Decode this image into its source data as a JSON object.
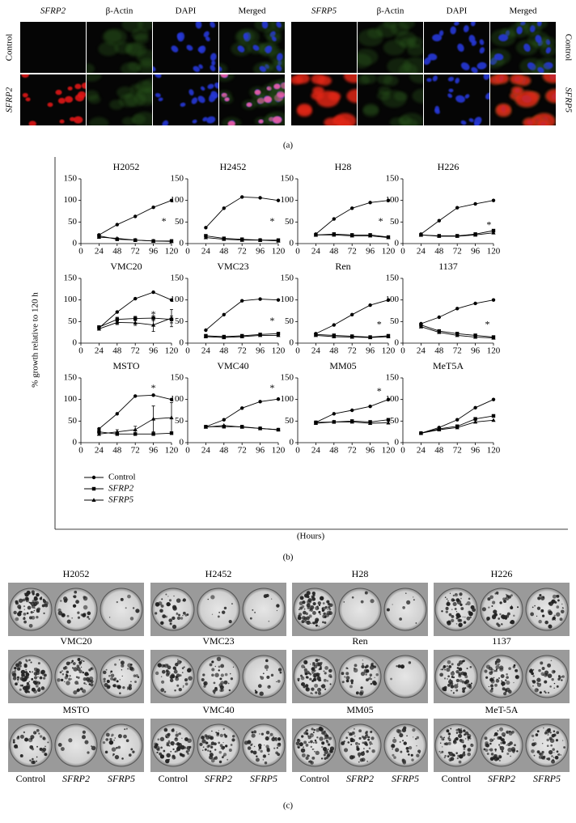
{
  "panel_a": {
    "left_columns": [
      "SFRP2",
      "β-Actin",
      "DAPI",
      "Merged"
    ],
    "right_columns": [
      "SFRP5",
      "β-Actin",
      "DAPI",
      "Merged"
    ],
    "left_rows": [
      "Control",
      "SFRP2"
    ],
    "right_rows": [
      "Control",
      "SFRP5"
    ],
    "label": "(a)"
  },
  "panel_b": {
    "ylabel": "% growth relative to 120 h",
    "xlabel": "(Hours)",
    "label": "(b)"
  },
  "chart_data": [
    {
      "type": "line",
      "title": "H2052",
      "x": [
        24,
        48,
        72,
        96,
        120
      ],
      "xlim": [
        0,
        120
      ],
      "xticks": [
        0,
        24,
        48,
        72,
        96,
        120
      ],
      "ylim": [
        0,
        150
      ],
      "yticks": [
        0,
        50,
        100,
        150
      ],
      "series": [
        {
          "name": "Control",
          "color": "#000",
          "marker": "circle",
          "values": [
            20,
            44,
            63,
            84,
            100
          ]
        },
        {
          "name": "SFRP2",
          "color": "#000",
          "marker": "square",
          "values": [
            18,
            10,
            8,
            6,
            6
          ]
        },
        {
          "name": "SFRP5",
          "color": "#000",
          "marker": "triangle",
          "values": [
            15,
            12,
            8,
            6,
            5
          ]
        }
      ],
      "annotations": [
        {
          "text": "*",
          "x": 110,
          "y": 50
        }
      ]
    },
    {
      "type": "line",
      "title": "H2452",
      "x": [
        24,
        48,
        72,
        96,
        120
      ],
      "xlim": [
        0,
        120
      ],
      "xticks": [
        0,
        24,
        48,
        72,
        96,
        120
      ],
      "ylim": [
        0,
        150
      ],
      "yticks": [
        0,
        50,
        100,
        150
      ],
      "series": [
        {
          "name": "Control",
          "color": "#000",
          "marker": "circle",
          "values": [
            37,
            82,
            108,
            106,
            100
          ]
        },
        {
          "name": "SFRP2",
          "color": "#000",
          "marker": "square",
          "values": [
            18,
            12,
            10,
            8,
            8
          ]
        },
        {
          "name": "SFRP5",
          "color": "#000",
          "marker": "triangle",
          "values": [
            14,
            10,
            8,
            8,
            6
          ]
        }
      ],
      "annotations": [
        {
          "text": "*",
          "x": 112,
          "y": 50
        }
      ]
    },
    {
      "type": "line",
      "title": "H28",
      "x": [
        24,
        48,
        72,
        96,
        120
      ],
      "xlim": [
        0,
        120
      ],
      "xticks": [
        0,
        24,
        48,
        72,
        96,
        120
      ],
      "ylim": [
        0,
        150
      ],
      "yticks": [
        0,
        50,
        100,
        150
      ],
      "series": [
        {
          "name": "Control",
          "color": "#000",
          "marker": "circle",
          "values": [
            22,
            57,
            82,
            95,
            100
          ]
        },
        {
          "name": "SFRP2",
          "color": "#000",
          "marker": "square",
          "values": [
            20,
            22,
            20,
            20,
            15
          ]
        },
        {
          "name": "SFRP5",
          "color": "#000",
          "marker": "triangle",
          "values": [
            20,
            20,
            18,
            18,
            14
          ]
        }
      ],
      "annotations": [
        {
          "text": "*",
          "x": 110,
          "y": 50
        }
      ]
    },
    {
      "type": "line",
      "title": "H226",
      "x": [
        24,
        48,
        72,
        96,
        120
      ],
      "xlim": [
        0,
        120
      ],
      "xticks": [
        0,
        24,
        48,
        72,
        96,
        120
      ],
      "ylim": [
        0,
        150
      ],
      "yticks": [
        0,
        50,
        100,
        150
      ],
      "series": [
        {
          "name": "Control",
          "color": "#000",
          "marker": "circle",
          "values": [
            22,
            53,
            83,
            92,
            100
          ]
        },
        {
          "name": "SFRP2",
          "color": "#000",
          "marker": "square",
          "values": [
            20,
            18,
            18,
            22,
            30
          ]
        },
        {
          "name": "SFRP5",
          "color": "#000",
          "marker": "triangle",
          "values": [
            20,
            17,
            17,
            20,
            25
          ]
        }
      ],
      "annotations": [
        {
          "text": "*",
          "x": 114,
          "y": 42
        }
      ]
    },
    {
      "type": "line",
      "title": "VMC20",
      "x": [
        24,
        48,
        72,
        96,
        120
      ],
      "xlim": [
        0,
        120
      ],
      "xticks": [
        0,
        24,
        48,
        72,
        96,
        120
      ],
      "ylim": [
        0,
        150
      ],
      "yticks": [
        0,
        50,
        100,
        150
      ],
      "series": [
        {
          "name": "Control",
          "color": "#000",
          "marker": "circle",
          "values": [
            35,
            72,
            103,
            118,
            100
          ]
        },
        {
          "name": "SFRP2",
          "color": "#000",
          "marker": "square",
          "values": [
            37,
            55,
            57,
            58,
            55
          ],
          "errors": [
            3,
            5,
            5,
            6,
            8
          ]
        },
        {
          "name": "SFRP5",
          "color": "#000",
          "marker": "triangle",
          "values": [
            33,
            48,
            47,
            42,
            58
          ],
          "errors": [
            3,
            5,
            6,
            15,
            20
          ]
        }
      ],
      "annotations": [
        {
          "text": "*",
          "x": 96,
          "y": 65
        }
      ]
    },
    {
      "type": "line",
      "title": "VMC23",
      "x": [
        24,
        48,
        72,
        96,
        120
      ],
      "xlim": [
        0,
        120
      ],
      "xticks": [
        0,
        24,
        48,
        72,
        96,
        120
      ],
      "ylim": [
        0,
        150
      ],
      "yticks": [
        0,
        50,
        100,
        150
      ],
      "series": [
        {
          "name": "Control",
          "color": "#000",
          "marker": "circle",
          "values": [
            30,
            66,
            98,
            102,
            100
          ]
        },
        {
          "name": "SFRP2",
          "color": "#000",
          "marker": "square",
          "values": [
            17,
            15,
            17,
            20,
            22
          ]
        },
        {
          "name": "SFRP5",
          "color": "#000",
          "marker": "triangle",
          "values": [
            15,
            13,
            15,
            18,
            18
          ]
        }
      ],
      "annotations": [
        {
          "text": "*",
          "x": 112,
          "y": 50
        }
      ]
    },
    {
      "type": "line",
      "title": "Ren",
      "x": [
        24,
        48,
        72,
        96,
        120
      ],
      "xlim": [
        0,
        120
      ],
      "xticks": [
        0,
        24,
        48,
        72,
        96,
        120
      ],
      "ylim": [
        0,
        150
      ],
      "yticks": [
        0,
        50,
        100,
        150
      ],
      "series": [
        {
          "name": "Control",
          "color": "#000",
          "marker": "circle",
          "values": [
            22,
            42,
            66,
            88,
            100
          ]
        },
        {
          "name": "SFRP2",
          "color": "#000",
          "marker": "square",
          "values": [
            20,
            18,
            16,
            14,
            17
          ]
        },
        {
          "name": "SFRP5",
          "color": "#000",
          "marker": "triangle",
          "values": [
            18,
            15,
            14,
            13,
            15
          ]
        }
      ],
      "annotations": [
        {
          "text": "*",
          "x": 108,
          "y": 42
        }
      ]
    },
    {
      "type": "line",
      "title": "1137",
      "x": [
        24,
        48,
        72,
        96,
        120
      ],
      "xlim": [
        0,
        120
      ],
      "xticks": [
        0,
        24,
        48,
        72,
        96,
        120
      ],
      "ylim": [
        0,
        150
      ],
      "yticks": [
        0,
        50,
        100,
        150
      ],
      "series": [
        {
          "name": "Control",
          "color": "#000",
          "marker": "circle",
          "values": [
            45,
            60,
            80,
            92,
            100
          ]
        },
        {
          "name": "SFRP2",
          "color": "#000",
          "marker": "square",
          "values": [
            42,
            28,
            22,
            18,
            14
          ]
        },
        {
          "name": "SFRP5",
          "color": "#000",
          "marker": "triangle",
          "values": [
            38,
            25,
            18,
            14,
            12
          ]
        }
      ],
      "annotations": [
        {
          "text": "*",
          "x": 112,
          "y": 42
        }
      ]
    },
    {
      "type": "line",
      "title": "MSTO",
      "x": [
        24,
        48,
        72,
        96,
        120
      ],
      "xlim": [
        0,
        120
      ],
      "xticks": [
        0,
        24,
        48,
        72,
        96,
        120
      ],
      "ylim": [
        0,
        150
      ],
      "yticks": [
        0,
        50,
        100,
        150
      ],
      "series": [
        {
          "name": "Control",
          "color": "#000",
          "marker": "circle",
          "values": [
            32,
            67,
            108,
            110,
            100
          ]
        },
        {
          "name": "SFRP2",
          "color": "#000",
          "marker": "square",
          "values": [
            25,
            20,
            20,
            20,
            22
          ]
        },
        {
          "name": "SFRP5",
          "color": "#000",
          "marker": "triangle",
          "values": [
            20,
            25,
            30,
            55,
            58
          ],
          "errors": [
            3,
            5,
            8,
            30,
            35
          ]
        }
      ],
      "annotations": [
        {
          "text": "*",
          "x": 96,
          "y": 125
        }
      ]
    },
    {
      "type": "line",
      "title": "VMC40",
      "x": [
        24,
        48,
        72,
        96,
        120
      ],
      "xlim": [
        0,
        120
      ],
      "xticks": [
        0,
        24,
        48,
        72,
        96,
        120
      ],
      "ylim": [
        0,
        150
      ],
      "yticks": [
        0,
        50,
        100,
        150
      ],
      "series": [
        {
          "name": "Control",
          "color": "#000",
          "marker": "circle",
          "values": [
            37,
            53,
            80,
            95,
            101
          ]
        },
        {
          "name": "SFRP2",
          "color": "#000",
          "marker": "square",
          "values": [
            37,
            37,
            37,
            33,
            30
          ]
        },
        {
          "name": "SFRP5",
          "color": "#000",
          "marker": "triangle",
          "values": [
            36,
            40,
            36,
            33,
            30
          ]
        }
      ],
      "annotations": [
        {
          "text": "*",
          "x": 112,
          "y": 125
        }
      ]
    },
    {
      "type": "line",
      "title": "MM05",
      "x": [
        24,
        48,
        72,
        96,
        120
      ],
      "xlim": [
        0,
        120
      ],
      "xticks": [
        0,
        24,
        48,
        72,
        96,
        120
      ],
      "ylim": [
        0,
        150
      ],
      "yticks": [
        0,
        50,
        100,
        150
      ],
      "series": [
        {
          "name": "Control",
          "color": "#000",
          "marker": "circle",
          "values": [
            47,
            67,
            75,
            84,
            100
          ]
        },
        {
          "name": "SFRP2",
          "color": "#000",
          "marker": "square",
          "values": [
            47,
            48,
            50,
            48,
            53
          ]
        },
        {
          "name": "SFRP5",
          "color": "#000",
          "marker": "triangle",
          "values": [
            45,
            48,
            48,
            45,
            46
          ]
        }
      ],
      "annotations": [
        {
          "text": "*",
          "x": 108,
          "y": 118
        }
      ]
    },
    {
      "type": "line",
      "title": "MeT5A",
      "x": [
        24,
        48,
        72,
        96,
        120
      ],
      "xlim": [
        0,
        120
      ],
      "xticks": [
        0,
        24,
        48,
        72,
        96,
        120
      ],
      "ylim": [
        0,
        150
      ],
      "yticks": [
        0,
        50,
        100,
        150
      ],
      "series": [
        {
          "name": "Control",
          "color": "#000",
          "marker": "circle",
          "values": [
            22,
            35,
            53,
            81,
            100
          ]
        },
        {
          "name": "SFRP2",
          "color": "#000",
          "marker": "square",
          "values": [
            22,
            32,
            38,
            55,
            62
          ]
        },
        {
          "name": "SFRP5",
          "color": "#000",
          "marker": "triangle",
          "values": [
            22,
            30,
            35,
            48,
            52
          ]
        }
      ],
      "annotations": []
    }
  ],
  "panel_c": {
    "cell_lines": [
      "H2052",
      "H2452",
      "H28",
      "H226",
      "VMC20",
      "VMC23",
      "Ren",
      "1137",
      "MSTO",
      "VMC40",
      "MM05",
      "MeT-5A"
    ],
    "conditions": [
      "Control",
      "SFRP2",
      "SFRP5"
    ],
    "label": "(c)"
  }
}
